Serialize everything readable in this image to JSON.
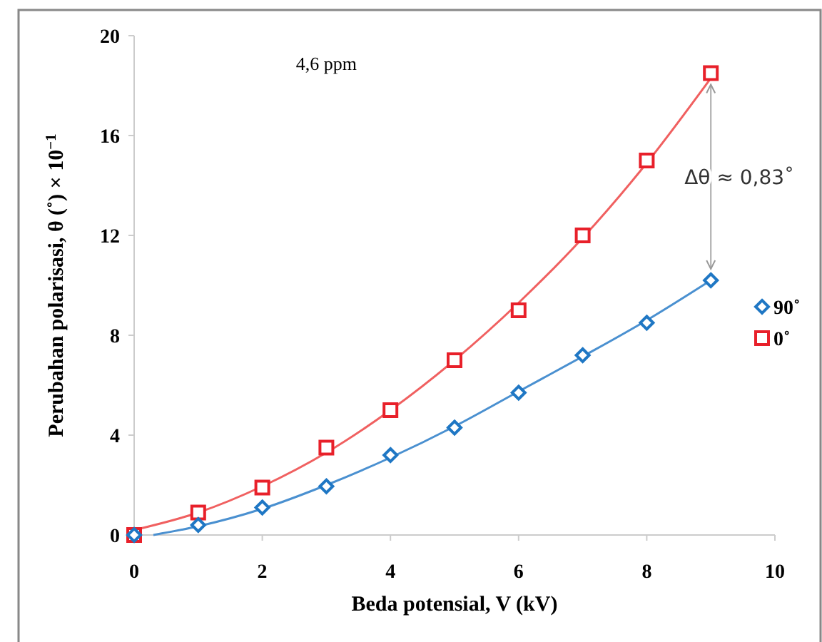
{
  "chart_data": {
    "type": "scatter",
    "xlabel": "Beda potensial, V (kV)",
    "ylabel": "Perubahan polarisasi, θ (˚) × 10$^{−1}$",
    "x": [
      0,
      1,
      2,
      3,
      4,
      5,
      6,
      7,
      8,
      9
    ],
    "xlim": [
      0,
      10
    ],
    "xticks": [
      0,
      2,
      4,
      6,
      8,
      10
    ],
    "ylim": [
      0,
      20
    ],
    "yticks": [
      0,
      4,
      8,
      12,
      16,
      20
    ],
    "grid": false,
    "legend": "right",
    "series": [
      {
        "name": "90˚",
        "color": "#1f77c4",
        "marker": "diamond",
        "values": [
          0,
          0.4,
          1.1,
          1.95,
          3.2,
          4.3,
          5.7,
          7.2,
          8.5,
          10.2
        ]
      },
      {
        "name": "0˚",
        "color": "#e8202a",
        "marker": "square",
        "values": [
          0,
          0.9,
          1.9,
          3.5,
          5.0,
          7.0,
          9.0,
          12.0,
          15.0,
          18.5
        ]
      },
      {
        "type": "line",
        "color": "#4a90d0",
        "marker": "none",
        "x": [
          0.3,
          1,
          2,
          3,
          4,
          5,
          6,
          7,
          8,
          9
        ],
        "values": [
          0,
          0.35,
          1.05,
          2.0,
          3.1,
          4.35,
          5.75,
          7.15,
          8.6,
          10.2
        ]
      },
      {
        "type": "line",
        "color": "#f06060",
        "marker": "none",
        "x": [
          0,
          1,
          2,
          3,
          4,
          5,
          6,
          7,
          8,
          9
        ],
        "values": [
          0.2,
          0.9,
          1.95,
          3.3,
          5.0,
          7.0,
          9.3,
          11.9,
          14.9,
          18.3
        ]
      }
    ],
    "annotations": [
      "4,6 ppm",
      "Δθ ≈ 0,83˚"
    ]
  }
}
